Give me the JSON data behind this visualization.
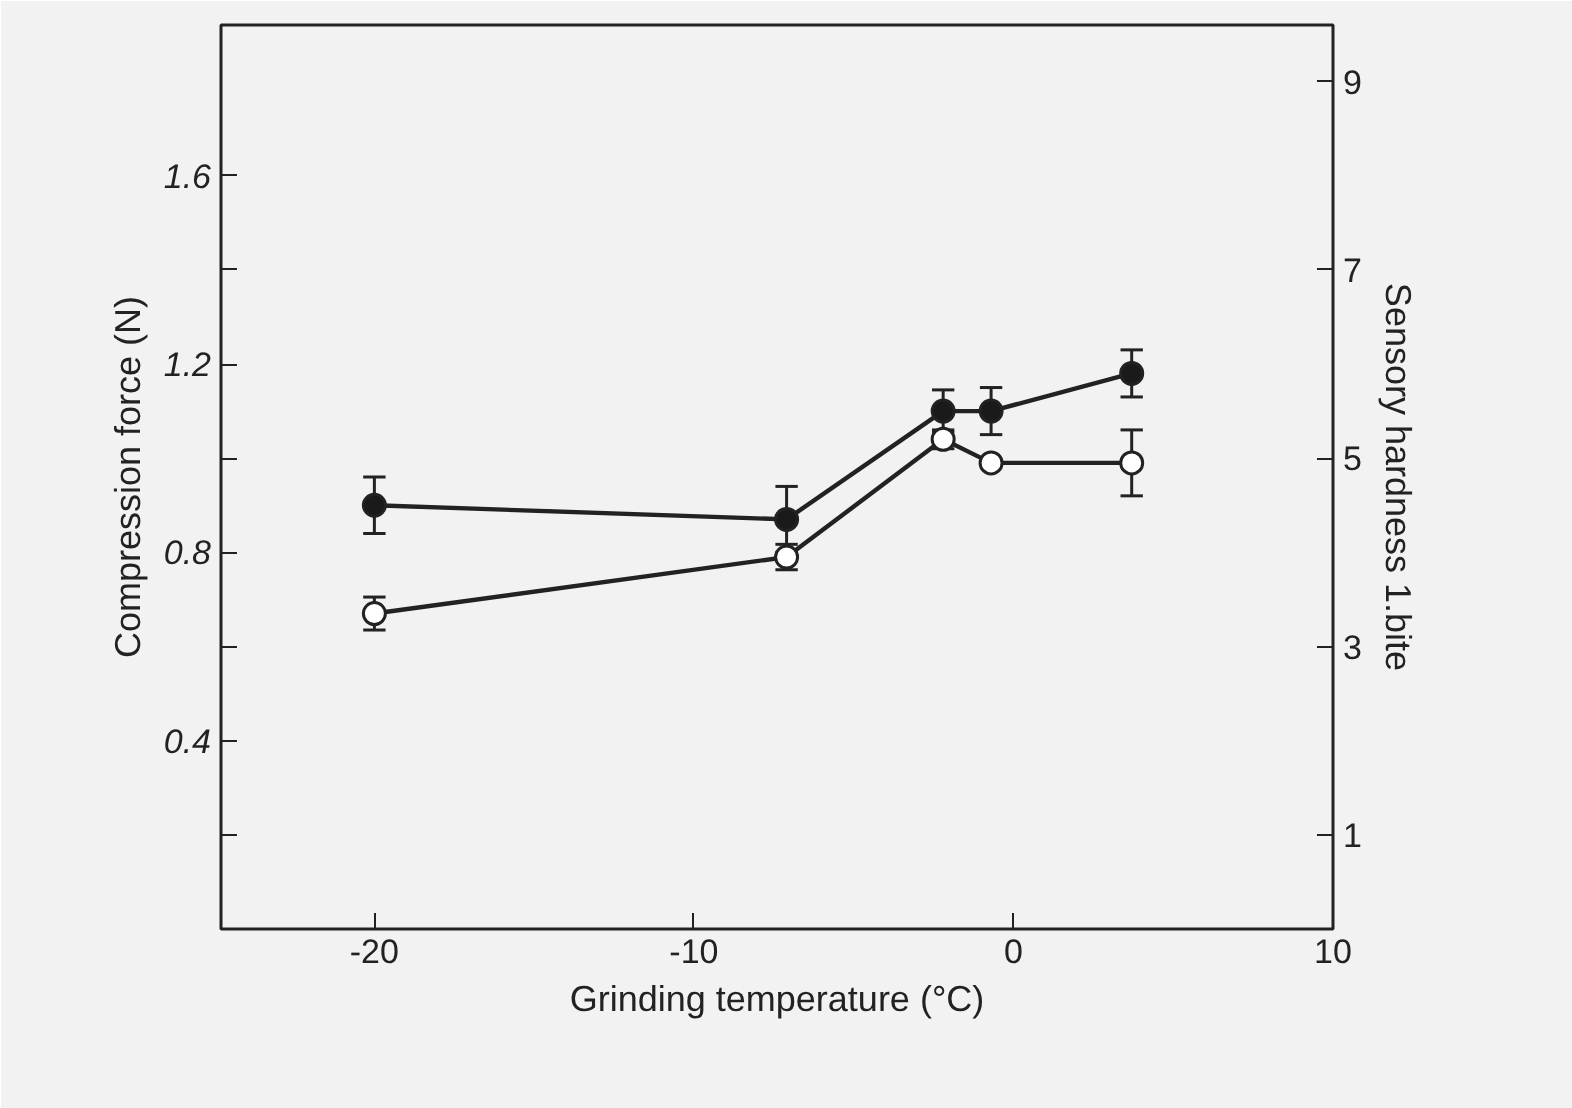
{
  "chart_data": {
    "type": "line",
    "xlabel": "Grinding temperature (°C)",
    "ylabel": "Compression force (N)",
    "y2label": "Sensory hardness 1.bite",
    "marker": "circle",
    "line_style": "solid",
    "grid": false,
    "xlim": [
      -24.8,
      10
    ],
    "xticks": [
      -20,
      -10,
      0,
      10
    ],
    "ylim": [
      0,
      1.92
    ],
    "yticks": [
      {
        "value": 0.2,
        "label": null
      },
      0.4,
      {
        "value": 0.6,
        "label": null
      },
      0.8,
      {
        "value": 1.0,
        "label": null
      },
      1.2,
      {
        "value": 1.4,
        "label": null
      },
      1.6
    ],
    "y2lim": [
      0,
      9.6
    ],
    "y2ticks": [
      1,
      3,
      5,
      7,
      9
    ],
    "series": [
      {
        "color": "#1a1a1a",
        "x": [
          -20,
          -7.1,
          -2.2,
          -0.7,
          3.7
        ],
        "values": [
          0.9,
          0.87,
          1.1,
          1.1,
          1.18
        ],
        "errors": [
          0.06,
          0.07,
          0.045,
          0.05,
          0.05
        ]
      },
      {
        "color": "#ffffff",
        "x": [
          -20,
          -7.1,
          -2.2,
          -0.7,
          3.7
        ],
        "values": [
          0.67,
          0.79,
          1.04,
          0.99,
          0.99
        ],
        "errors": [
          0.035,
          0.027,
          0.02,
          null,
          0.07
        ]
      }
    ]
  }
}
